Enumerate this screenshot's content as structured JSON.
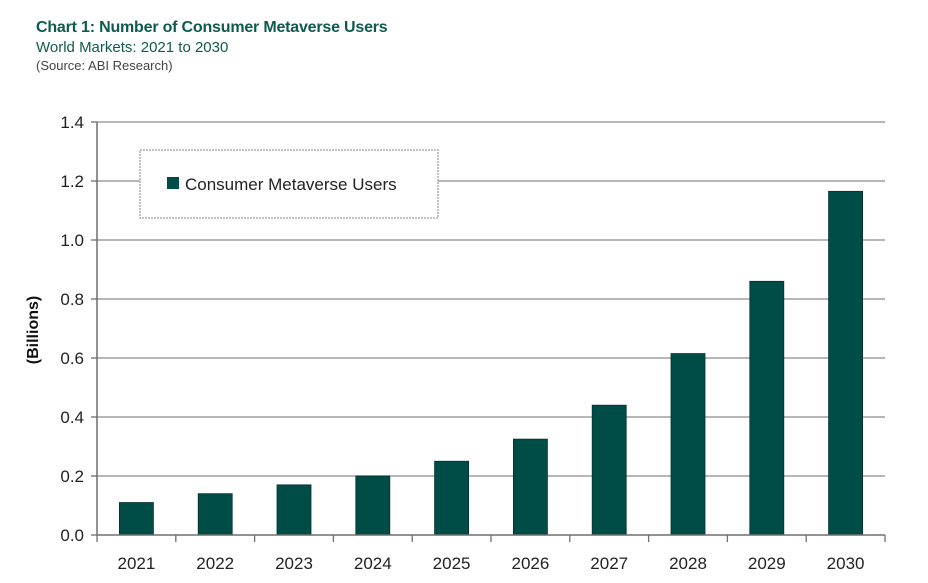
{
  "header": {
    "title": "Chart 1: Number of Consumer Metaverse Users",
    "subtitle": "World Markets: 2021 to 2030",
    "source": "(Source: ABI Research)"
  },
  "colors": {
    "bar": "#004d48",
    "grid": "#8c8c8c",
    "axis": "#6e6e6e"
  },
  "chart_data": {
    "type": "bar",
    "categories": [
      "2021",
      "2022",
      "2023",
      "2024",
      "2025",
      "2026",
      "2027",
      "2028",
      "2029",
      "2030"
    ],
    "series": [
      {
        "name": "Consumer Metaverse Users",
        "values": [
          0.11,
          0.14,
          0.17,
          0.2,
          0.25,
          0.325,
          0.44,
          0.615,
          0.86,
          1.165
        ]
      }
    ],
    "ylabel": "(Billions)",
    "xlabel": "",
    "ylim": [
      0,
      1.4
    ],
    "yticks": [
      0,
      0.2,
      0.4,
      0.6,
      0.8,
      1.0,
      1.2,
      1.4
    ],
    "ytick_labels": [
      "0.0",
      "0.2",
      "0.4",
      "0.6",
      "0.8",
      "1.0",
      "1.2",
      "1.4"
    ],
    "grid": true,
    "legend_position": "top-left inside plot"
  }
}
